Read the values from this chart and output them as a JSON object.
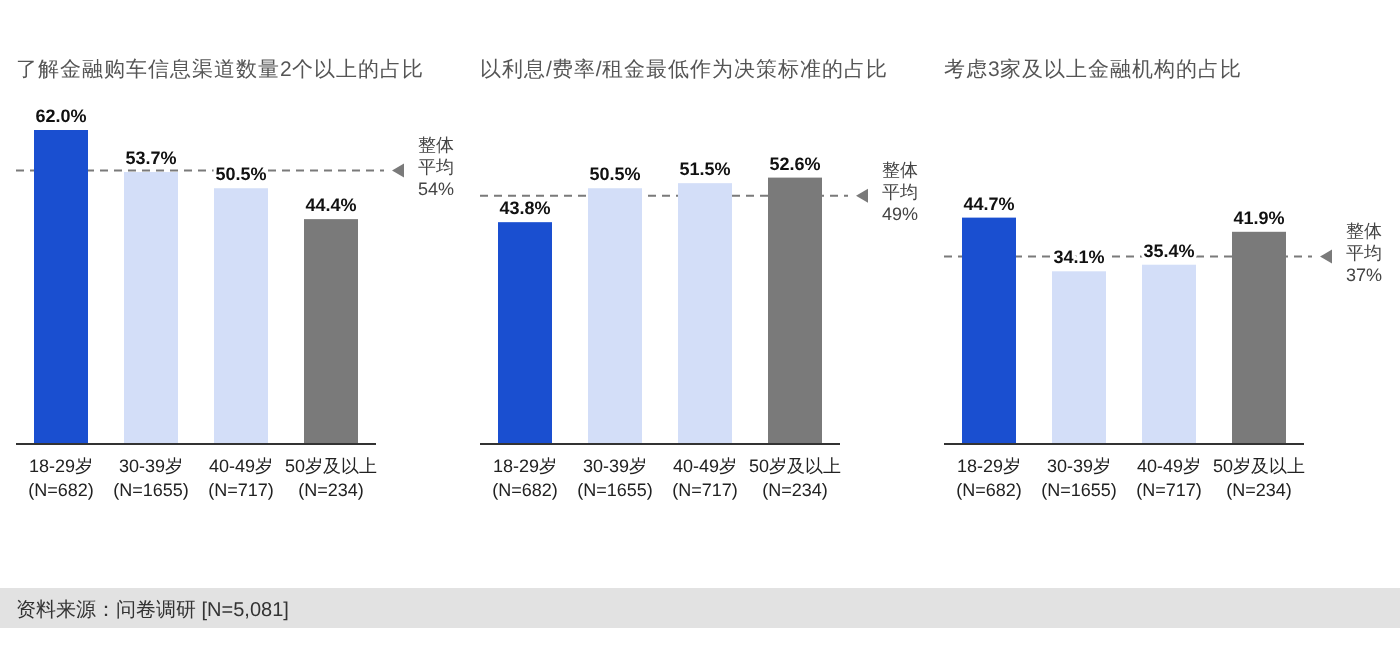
{
  "chart_data": [
    {
      "type": "bar",
      "title": "了解金融购车信息渠道数量2个以上的占比",
      "categories": [
        "18-29岁\n(N=682)",
        "30-39岁\n(N=1655)",
        "40-49岁\n(N=717)",
        "50岁及以上\n(N=234)"
      ],
      "values": [
        62.0,
        53.7,
        50.5,
        44.4
      ],
      "value_labels": [
        "62.0%",
        "53.7%",
        "50.5%",
        "44.4%"
      ],
      "colors": [
        "#1a4fd0",
        "#d3def8",
        "#d3def8",
        "#7a7a7a"
      ],
      "ref_lines": [
        {
          "axis": "y",
          "value": 54,
          "label": "整体平均54%",
          "color": "#7a7a7a",
          "line_style": "dashed"
        }
      ],
      "annotations": [
        "资料来源：问卷调研 [N=5,081]"
      ]
    },
    {
      "type": "bar",
      "title": "以利息/费率/租金最低作为决策标准的占比",
      "categories": [
        "18-29岁\n(N=682)",
        "30-39岁\n(N=1655)",
        "40-49岁\n(N=717)",
        "50岁及以上\n(N=234)"
      ],
      "values": [
        43.8,
        50.5,
        51.5,
        52.6
      ],
      "value_labels": [
        "43.8%",
        "50.5%",
        "51.5%",
        "52.6%"
      ],
      "colors": [
        "#1a4fd0",
        "#d3def8",
        "#d3def8",
        "#7a7a7a"
      ],
      "ref_lines": [
        {
          "axis": "y",
          "value": 49,
          "label": "整体平均49%",
          "color": "#7a7a7a",
          "line_style": "dashed"
        }
      ]
    },
    {
      "type": "bar",
      "title": "考虑3家及以上金融机构的占比",
      "categories": [
        "18-29岁\n(N=682)",
        "30-39岁\n(N=1655)",
        "40-49岁\n(N=717)",
        "50岁及以上\n(N=234)"
      ],
      "values": [
        44.7,
        34.1,
        35.4,
        41.9
      ],
      "value_labels": [
        "44.7%",
        "34.1%",
        "35.4%",
        "41.9%"
      ],
      "colors": [
        "#1a4fd0",
        "#d3def8",
        "#d3def8",
        "#7a7a7a"
      ],
      "ref_lines": [
        {
          "axis": "y",
          "value": 37,
          "label": "整体平均37%",
          "color": "#7a7a7a",
          "line_style": "dashed"
        }
      ]
    }
  ]
}
